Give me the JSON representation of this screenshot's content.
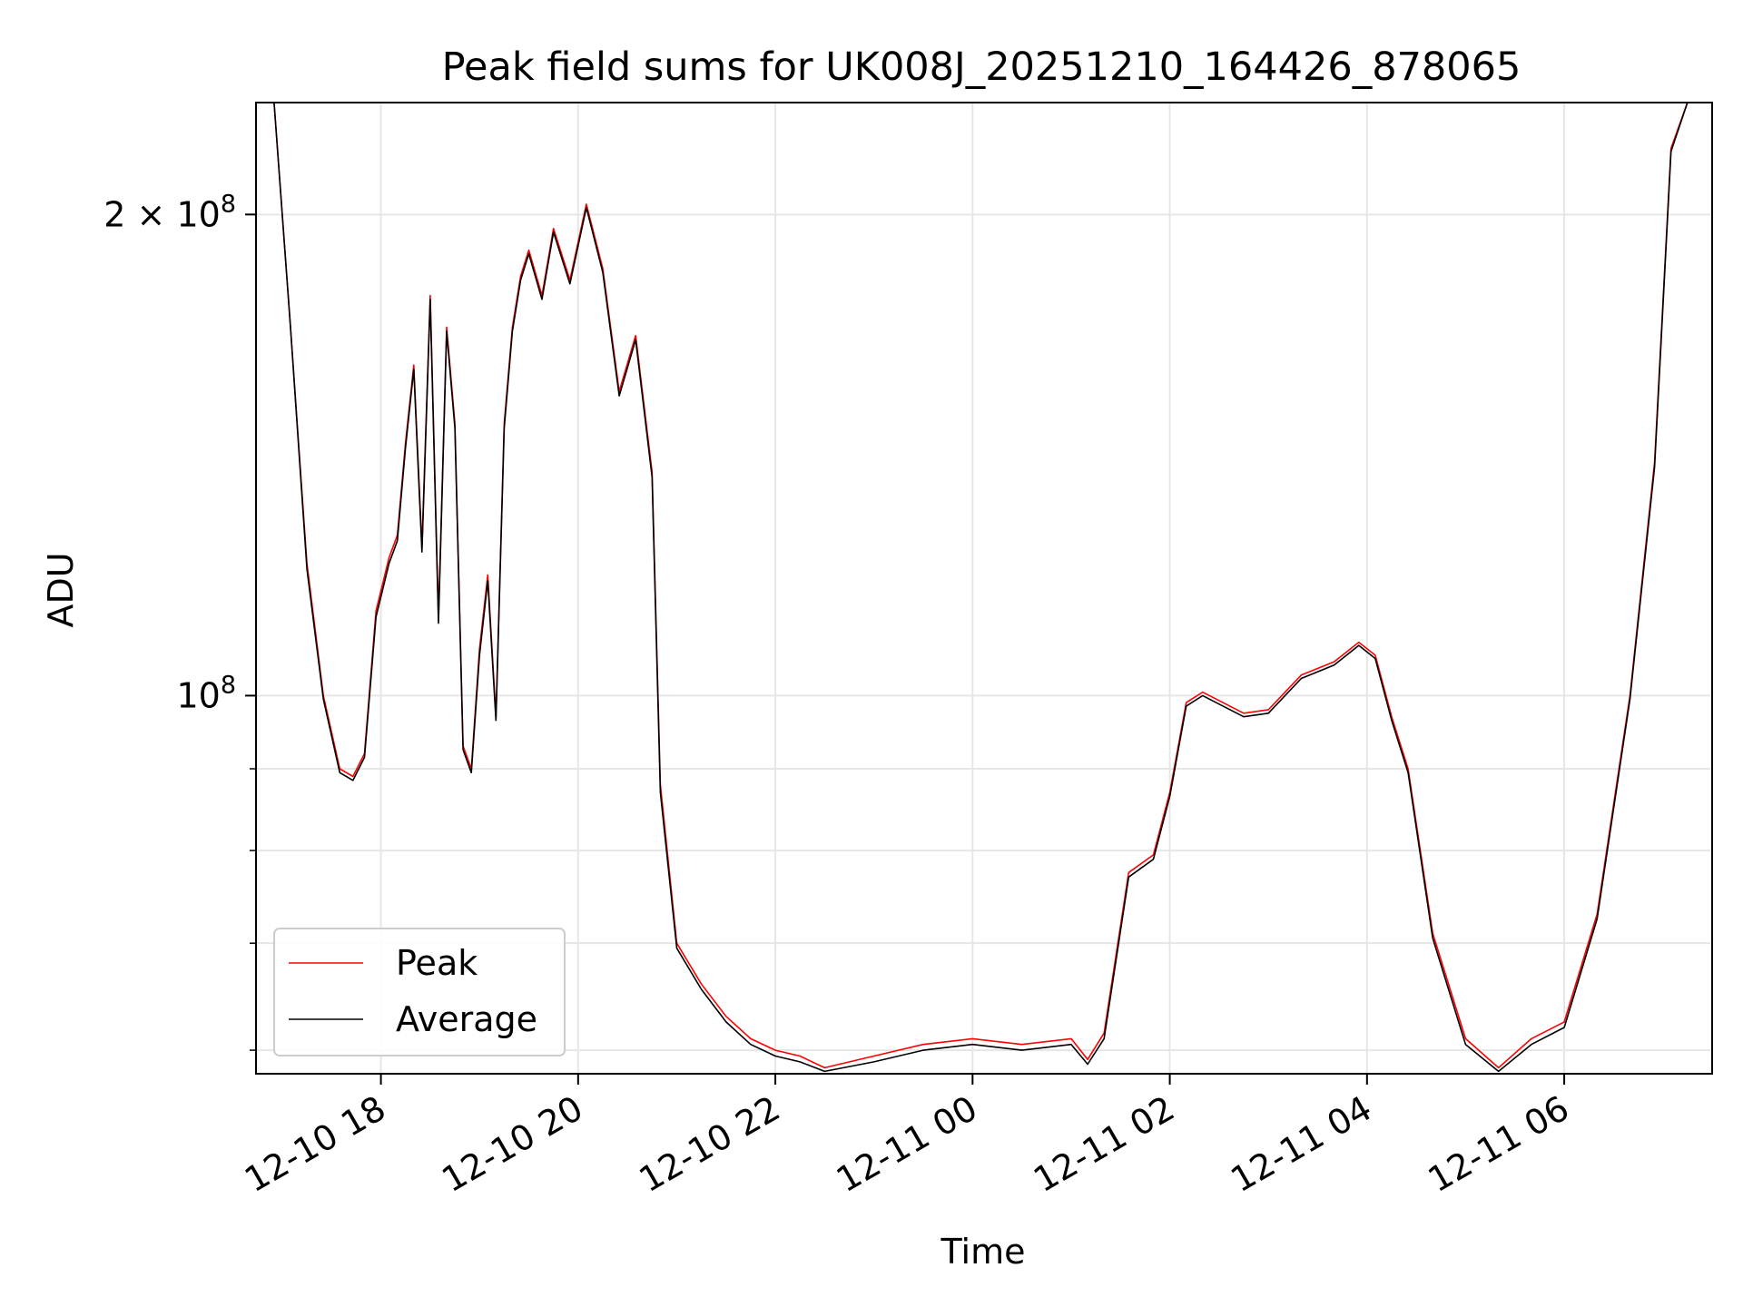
{
  "chart_data": {
    "type": "line",
    "title": "Peak field sums for UK008J_20251210_164426_878065",
    "xlabel": "Time",
    "ylabel": "ADU",
    "yscale": "log",
    "ylim": [
      58000000,
      235000000
    ],
    "xlim": [
      "2025-12-10 16:44",
      "2025-12-11 07:30"
    ],
    "grid": true,
    "legend_position": "lower-left",
    "x_ticks": [
      "12-10 18",
      "12-10 20",
      "12-10 22",
      "12-11 00",
      "12-11 02",
      "12-11 04",
      "12-11 06"
    ],
    "y_ticks": [
      {
        "value": 100000000,
        "label_base": "10",
        "label_exp": "8"
      },
      {
        "value": 200000000,
        "label_base": "2 × 10",
        "label_exp": "8"
      }
    ],
    "x": [
      "2025-12-10 16:44",
      "2025-12-10 16:55",
      "2025-12-10 17:05",
      "2025-12-10 17:15",
      "2025-12-10 17:25",
      "2025-12-10 17:35",
      "2025-12-10 17:43",
      "2025-12-10 17:50",
      "2025-12-10 17:57",
      "2025-12-10 18:05",
      "2025-12-10 18:10",
      "2025-12-10 18:15",
      "2025-12-10 18:20",
      "2025-12-10 18:25",
      "2025-12-10 18:30",
      "2025-12-10 18:35",
      "2025-12-10 18:40",
      "2025-12-10 18:45",
      "2025-12-10 18:50",
      "2025-12-10 18:55",
      "2025-12-10 19:00",
      "2025-12-10 19:05",
      "2025-12-10 19:10",
      "2025-12-10 19:15",
      "2025-12-10 19:20",
      "2025-12-10 19:25",
      "2025-12-10 19:30",
      "2025-12-10 19:38",
      "2025-12-10 19:45",
      "2025-12-10 19:55",
      "2025-12-10 20:05",
      "2025-12-10 20:15",
      "2025-12-10 20:25",
      "2025-12-10 20:35",
      "2025-12-10 20:45",
      "2025-12-10 20:50",
      "2025-12-10 21:00",
      "2025-12-10 21:15",
      "2025-12-10 21:30",
      "2025-12-10 21:45",
      "2025-12-10 22:00",
      "2025-12-10 22:15",
      "2025-12-10 22:30",
      "2025-12-10 23:00",
      "2025-12-10 23:30",
      "2025-12-11 00:00",
      "2025-12-11 00:30",
      "2025-12-11 01:00",
      "2025-12-11 01:10",
      "2025-12-11 01:20",
      "2025-12-11 01:35",
      "2025-12-11 01:50",
      "2025-12-11 02:00",
      "2025-12-11 02:10",
      "2025-12-11 02:20",
      "2025-12-11 02:45",
      "2025-12-11 03:00",
      "2025-12-11 03:20",
      "2025-12-11 03:40",
      "2025-12-11 03:55",
      "2025-12-11 04:05",
      "2025-12-11 04:15",
      "2025-12-11 04:25",
      "2025-12-11 04:40",
      "2025-12-11 05:00",
      "2025-12-11 05:20",
      "2025-12-11 05:40",
      "2025-12-11 06:00",
      "2025-12-11 06:20",
      "2025-12-11 06:40",
      "2025-12-11 06:55",
      "2025-12-11 07:05",
      "2025-12-11 07:15",
      "2025-12-11 07:20"
    ],
    "series": [
      {
        "name": "Peak",
        "color": "#ff0000",
        "values": [
          235000000,
          235000000,
          170000000,
          121000000,
          100000000,
          90000000,
          89000000,
          92000000,
          113000000,
          122000000,
          126000000,
          144000000,
          161000000,
          124000000,
          178000000,
          112000000,
          170000000,
          148000000,
          93000000,
          90000000,
          107000000,
          119000000,
          97000000,
          148000000,
          170000000,
          183000000,
          190000000,
          178000000,
          196000000,
          182000000,
          203000000,
          185000000,
          155000000,
          168000000,
          138000000,
          88000000,
          70000000,
          66000000,
          63000000,
          61000000,
          60000000,
          59500000,
          58500000,
          59500000,
          60500000,
          61000000,
          60500000,
          61000000,
          59200000,
          61500000,
          77500000,
          79500000,
          87000000,
          99000000,
          100500000,
          97500000,
          98000000,
          103000000,
          105000000,
          108000000,
          106000000,
          97000000,
          90000000,
          71000000,
          61000000,
          58500000,
          61000000,
          62500000,
          73000000,
          100000000,
          140000000,
          220000000,
          235000000,
          235000000
        ]
      },
      {
        "name": "Average",
        "color": "#000000",
        "values": [
          235000000,
          235000000,
          170000000,
          120000000,
          99500000,
          89500000,
          88500000,
          91500000,
          112000000,
          121000000,
          125000000,
          143000000,
          160000000,
          123000000,
          177000000,
          111000000,
          169000000,
          147000000,
          92500000,
          89500000,
          106000000,
          118000000,
          96500000,
          147000000,
          169000000,
          182000000,
          189000000,
          177000000,
          195000000,
          181000000,
          202000000,
          184000000,
          154000000,
          167000000,
          137000000,
          87000000,
          69500000,
          65500000,
          62500000,
          60500000,
          59500000,
          59000000,
          58200000,
          59000000,
          60000000,
          60500000,
          60000000,
          60500000,
          58800000,
          61000000,
          77000000,
          79000000,
          86500000,
          98500000,
          100000000,
          97000000,
          97500000,
          102500000,
          104500000,
          107500000,
          105500000,
          96500000,
          89500000,
          70500000,
          60500000,
          58200000,
          60500000,
          62000000,
          72500000,
          99500000,
          139000000,
          219000000,
          235000000,
          235000000
        ]
      }
    ]
  }
}
